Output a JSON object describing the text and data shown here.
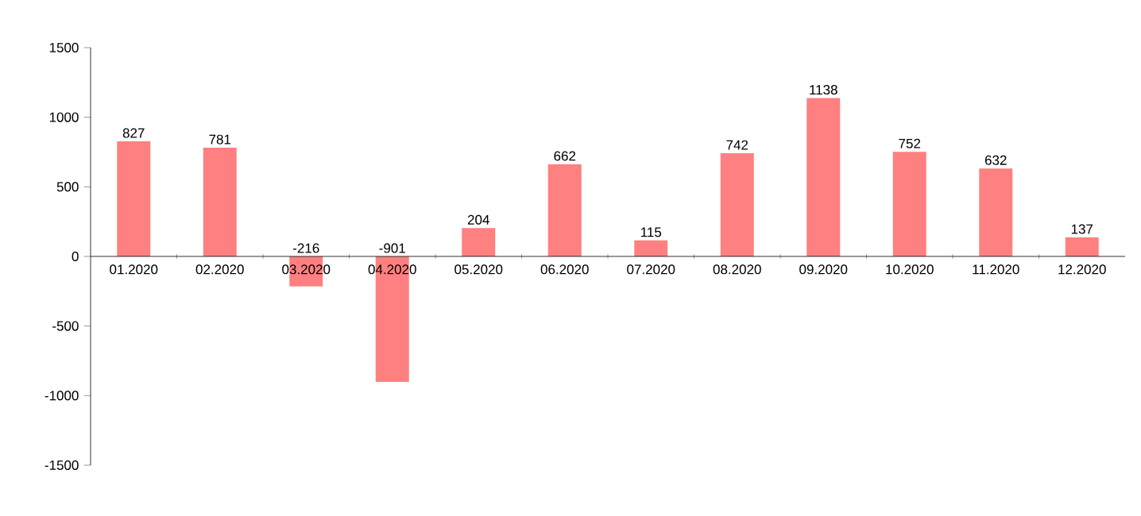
{
  "chart_data": {
    "type": "bar",
    "categories": [
      "01.2020",
      "02.2020",
      "03.2020",
      "04.2020",
      "05.2020",
      "06.2020",
      "07.2020",
      "08.2020",
      "09.2020",
      "10.2020",
      "11.2020",
      "12.2020"
    ],
    "values": [
      827,
      781,
      -216,
      -901,
      204,
      662,
      115,
      742,
      1138,
      752,
      632,
      137
    ],
    "color": "#ff8080",
    "ylim": [
      -1500,
      1500
    ],
    "yticks": [
      -1500,
      -1000,
      -500,
      0,
      500,
      1000,
      1500
    ],
    "data_labels": true
  }
}
